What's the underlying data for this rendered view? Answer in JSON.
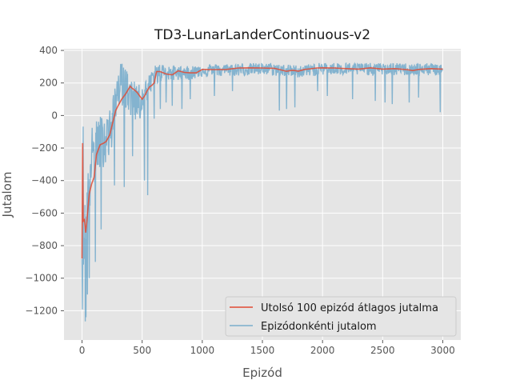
{
  "chart_data": {
    "type": "line",
    "title": "TD3-LunarLanderContinuous-v2",
    "xlabel": "Epizód",
    "ylabel": "Jutalom",
    "xlim": [
      -150,
      3150
    ],
    "ylim": [
      -1380,
      410
    ],
    "xticks": [
      0,
      500,
      1000,
      1500,
      2000,
      2500,
      3000
    ],
    "yticks": [
      400,
      200,
      0,
      -200,
      -400,
      -600,
      -800,
      -1000,
      -1200
    ],
    "xtick_labels": [
      "0",
      "500",
      "1000",
      "1500",
      "2000",
      "2500",
      "3000"
    ],
    "ytick_labels": [
      "400",
      "200",
      "0",
      "−200",
      "−400",
      "−600",
      "−800",
      "−1000",
      "−1200"
    ],
    "grid": true,
    "legend_position": "lower-right",
    "colors": {
      "background": "#e5e5e5",
      "grid": "#ffffff",
      "average": "#e24a33",
      "episode": "#348abd"
    },
    "series": [
      {
        "name": "Utolsó 100 epizód átlagos jutalma",
        "key": "average",
        "style": "line",
        "x": [
          0,
          5,
          10,
          20,
          30,
          40,
          50,
          60,
          80,
          100,
          120,
          150,
          180,
          200,
          230,
          260,
          280,
          300,
          330,
          360,
          380,
          400,
          420,
          440,
          460,
          480,
          500,
          520,
          540,
          560,
          580,
          600,
          620,
          650,
          700,
          750,
          800,
          850,
          900,
          950,
          1000,
          1100,
          1200,
          1300,
          1400,
          1500,
          1600,
          1700,
          1750,
          1800,
          1850,
          1900,
          1950,
          2000,
          2100,
          2200,
          2300,
          2400,
          2500,
          2600,
          2700,
          2750,
          2800,
          2900,
          3000
        ],
        "y": [
          -880,
          -170,
          -650,
          -640,
          -720,
          -650,
          -560,
          -480,
          -420,
          -380,
          -240,
          -180,
          -170,
          -160,
          -120,
          -30,
          30,
          60,
          100,
          130,
          155,
          180,
          165,
          155,
          140,
          120,
          100,
          120,
          150,
          175,
          185,
          200,
          270,
          270,
          255,
          250,
          275,
          265,
          262,
          262,
          283,
          282,
          283,
          292,
          293,
          292,
          290,
          272,
          278,
          273,
          283,
          287,
          292,
          293,
          292,
          288,
          285,
          293,
          285,
          288,
          282,
          276,
          283,
          288,
          285
        ]
      },
      {
        "name": "Epizódonkénti jutalom",
        "key": "episode",
        "style": "noisy",
        "x": [
          0,
          10,
          20,
          30,
          40,
          50,
          60,
          80,
          100,
          150,
          200,
          250,
          300,
          350,
          400,
          450,
          500,
          550,
          600,
          650,
          700,
          800,
          900,
          1000,
          1200,
          1500,
          1800,
          2000,
          2500,
          3000
        ],
        "y": [
          -700,
          -400,
          -750,
          -900,
          -600,
          -500,
          -300,
          -250,
          -200,
          -120,
          -100,
          -50,
          180,
          200,
          150,
          140,
          120,
          180,
          260,
          280,
          270,
          265,
          268,
          280,
          282,
          290,
          275,
          292,
          288,
          287
        ],
        "spread_upper": [
          500,
          400,
          350,
          300,
          250,
          250,
          230,
          180,
          150,
          120,
          100,
          120,
          150,
          120,
          80,
          60,
          60,
          60,
          45,
          40,
          40,
          38,
          36,
          36,
          36,
          34,
          34,
          34,
          34,
          34
        ],
        "spread_lower": [
          600,
          550,
          500,
          480,
          420,
          380,
          330,
          290,
          260,
          220,
          200,
          200,
          120,
          140,
          160,
          180,
          170,
          120,
          90,
          70,
          60,
          50,
          50,
          42,
          42,
          42,
          42,
          42,
          42,
          42
        ],
        "dips": [
          [
            32,
            -1240
          ],
          [
            45,
            -1100
          ],
          [
            60,
            -1000
          ],
          [
            110,
            -900
          ],
          [
            160,
            -700
          ],
          [
            270,
            -430
          ],
          [
            350,
            -440
          ],
          [
            420,
            -250
          ],
          [
            520,
            -400
          ],
          [
            545,
            -490
          ],
          [
            600,
            -20
          ],
          [
            650,
            40
          ],
          [
            700,
            80
          ],
          [
            750,
            60
          ],
          [
            830,
            40
          ],
          [
            900,
            100
          ],
          [
            1100,
            120
          ],
          [
            1250,
            150
          ],
          [
            1640,
            30
          ],
          [
            1700,
            40
          ],
          [
            1770,
            50
          ],
          [
            1960,
            150
          ],
          [
            2040,
            120
          ],
          [
            2250,
            100
          ],
          [
            2440,
            90
          ],
          [
            2520,
            80
          ],
          [
            2580,
            70
          ],
          [
            2720,
            80
          ],
          [
            2800,
            110
          ],
          [
            2980,
            20
          ]
        ]
      }
    ]
  }
}
